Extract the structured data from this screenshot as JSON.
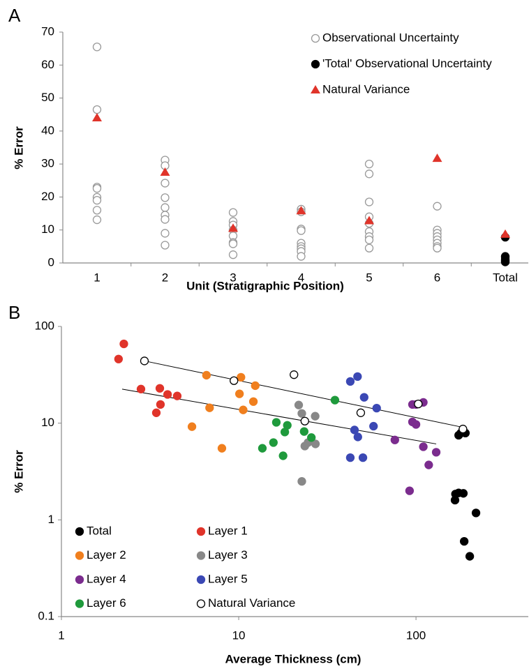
{
  "chart_data": [
    {
      "type": "scatter",
      "label": "A",
      "xlabel": "Unit (Stratigraphic Position)",
      "ylabel": "% Error",
      "categories": [
        "1",
        "2",
        "3",
        "4",
        "5",
        "6",
        "Total"
      ],
      "ylim": [
        0,
        70
      ],
      "yticks": [
        0,
        10,
        20,
        30,
        40,
        50,
        60,
        70
      ],
      "series": [
        {
          "name": "Observational Uncertainty",
          "color": "#999999",
          "marker": "circle",
          "filled": false,
          "values": [
            [
              65.5,
              46.5,
              23,
              22.6,
              19.9,
              19,
              16,
              13.1
            ],
            [
              31.2,
              29.5,
              24.2,
              19.8,
              16.8,
              14.5,
              13.2,
              9,
              5.4
            ],
            [
              15.3,
              12.6,
              11.5,
              10,
              8.2,
              6.2,
              5.8,
              2.5
            ],
            [
              16.3,
              15.5,
              10.3,
              9.8,
              6,
              5,
              4.3,
              3.5,
              2
            ],
            [
              30,
              27,
              18.5,
              14,
              12,
              9.5,
              8,
              7,
              4.5
            ],
            [
              17.2,
              10,
              9,
              8,
              7,
              6,
              5,
              4.5
            ],
            null
          ]
        },
        {
          "name": "'Total' Observational Uncertainty",
          "color": "#000000",
          "marker": "circle",
          "filled": true,
          "values": [
            null,
            null,
            null,
            null,
            null,
            null,
            [
              7.8,
              2,
              1.8,
              1.2,
              0.8,
              0.5,
              0.3
            ]
          ]
        },
        {
          "name": "Natural Variance",
          "color": "#e0342a",
          "marker": "triangle",
          "filled": true,
          "values": [
            44,
            27.5,
            10.5,
            15.8,
            12.8,
            31.7,
            8.7
          ]
        }
      ]
    },
    {
      "type": "scatter",
      "label": "B",
      "xlabel": "Average Thickness (cm)",
      "ylabel": "% Error",
      "xscale": "log",
      "yscale": "log",
      "xlim": [
        1,
        430
      ],
      "xticks": [
        1,
        10,
        100
      ],
      "ylim": [
        0.1,
        100
      ],
      "yticks": [
        0.1,
        1,
        10,
        100
      ],
      "series": [
        {
          "name": "Total",
          "color": "#000000",
          "filled": true,
          "x": [
            174,
            179,
            190,
            174,
            166,
            185,
            167,
            218,
            187,
            201
          ],
          "values": [
            7.5,
            7.9,
            7.9,
            1.9,
            1.6,
            1.88,
            1.85,
            1.18,
            0.6,
            0.42
          ]
        },
        {
          "name": "Layer 1",
          "color": "#e0342a",
          "filled": true,
          "x": [
            2.25,
            2.1,
            2.81,
            3.59,
            3.62,
            3.43,
            3.97,
            4.5
          ],
          "values": [
            66,
            46,
            22.5,
            22.9,
            15.6,
            12.8,
            19.8,
            19.1
          ]
        },
        {
          "name": "Layer 2",
          "color": "#f07f1e",
          "filled": true,
          "x": [
            6.58,
            6.85,
            5.45,
            8.04,
            10.3,
            10.1,
            10.6,
            12.1,
            12.4
          ],
          "values": [
            31.3,
            14.4,
            9.2,
            5.5,
            29.8,
            20.1,
            13.7,
            16.7,
            24.4
          ]
        },
        {
          "name": "Layer 3",
          "color": "#888888",
          "filled": true,
          "x": [
            21.8,
            22.7,
            27,
            23.6,
            24.6,
            27.1,
            22.7
          ],
          "values": [
            15.4,
            12.6,
            11.8,
            5.8,
            6.3,
            6.1,
            2.5
          ]
        },
        {
          "name": "Layer 4",
          "color": "#7b2c8e",
          "filled": true,
          "x": [
            95.5,
            100,
            110,
            95.5,
            100,
            76,
            110,
            118,
            130,
            92
          ],
          "values": [
            15.6,
            15.6,
            16.4,
            10.3,
            9.7,
            6.7,
            5.7,
            3.7,
            5,
            2
          ]
        },
        {
          "name": "Layer 5",
          "color": "#3b48b4",
          "filled": true,
          "x": [
            42.6,
            46.8,
            51,
            60,
            57.6,
            45,
            47,
            42.6,
            50.2
          ],
          "values": [
            27,
            30.3,
            18.5,
            14.3,
            9.3,
            8.5,
            7.2,
            4.4,
            4.4
          ]
        },
        {
          "name": "Layer 6",
          "color": "#1f9a3c",
          "filled": true,
          "x": [
            34.9,
            16.3,
            18.8,
            18.2,
            15.7,
            13.6,
            17.8,
            23.4,
            25.7
          ],
          "values": [
            17.3,
            10.2,
            9.5,
            8.1,
            6.3,
            5.5,
            4.6,
            8.2,
            7.1
          ]
        },
        {
          "name": "Natural Variance",
          "color": "#000000",
          "filled": false,
          "x": [
            2.94,
            9.4,
            20.5,
            23.6,
            48.8,
            103,
            184
          ],
          "values": [
            44,
            27.5,
            31.7,
            10.5,
            12.8,
            15.8,
            8.7
          ]
        }
      ],
      "trendlines": [
        {
          "x": [
            2.94,
            184
          ],
          "values": [
            44,
            9.05
          ]
        },
        {
          "x": [
            2.2,
            130
          ],
          "values": [
            22.5,
            6.1
          ]
        }
      ]
    }
  ]
}
